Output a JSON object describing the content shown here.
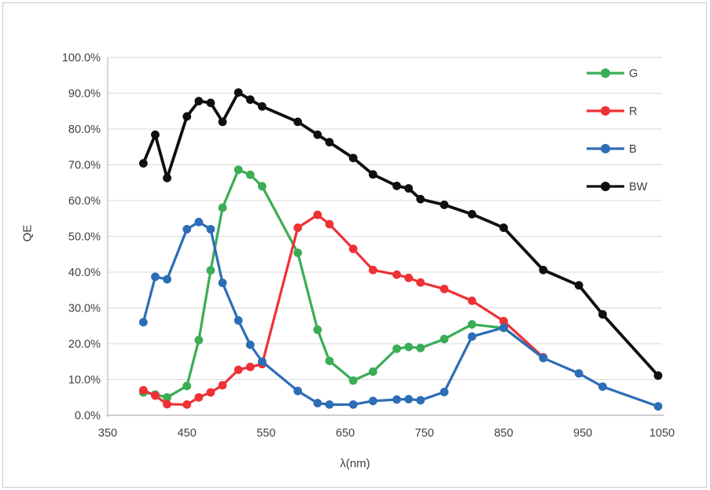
{
  "figure": {
    "background": "#ffffff",
    "border_color": "#c8c8c8"
  },
  "chart_data": {
    "type": "line",
    "title": "",
    "xlabel": "λ(nm)",
    "ylabel": "QE",
    "xlim": [
      350,
      1050
    ],
    "ylim": [
      0,
      100
    ],
    "grid": "horizontal-only",
    "legend_position": "top-right-inside",
    "x_ticks": [
      350,
      450,
      550,
      650,
      750,
      850,
      950,
      1050
    ],
    "y_ticks": [
      0,
      10,
      20,
      30,
      40,
      50,
      60,
      70,
      80,
      90,
      100
    ],
    "y_tick_format": "percent-one-decimal",
    "colors": {
      "gridline": "#d9d9d9",
      "axis_line": "#bfbfbf",
      "tick_label": "#3f3f3f"
    },
    "x": [
      395,
      410,
      425,
      450,
      465,
      480,
      495,
      515,
      530,
      545,
      590,
      615,
      630,
      660,
      685,
      715,
      730,
      745,
      775,
      810,
      850,
      900,
      945,
      975,
      1045
    ],
    "series": [
      {
        "name": "G",
        "color": "#3aad55",
        "values": [
          6.4,
          5.8,
          5.0,
          8.2,
          21.0,
          40.5,
          58.0,
          68.6,
          67.2,
          64.0,
          45.4,
          23.9,
          15.2,
          9.7,
          12.2,
          18.6,
          19.1,
          18.8,
          21.3,
          25.4,
          24.4,
          16.0,
          null,
          null,
          null
        ]
      },
      {
        "name": "R",
        "color": "#ee3135",
        "values": [
          7.0,
          5.5,
          3.1,
          3.0,
          5.0,
          6.4,
          8.4,
          12.7,
          13.5,
          14.3,
          52.4,
          56.0,
          53.4,
          46.5,
          40.6,
          39.3,
          38.4,
          37.1,
          35.3,
          32.0,
          26.3,
          16.2,
          null,
          null,
          null
        ]
      },
      {
        "name": "B",
        "color": "#2d6db6",
        "values": [
          26.0,
          38.7,
          38.0,
          52.0,
          54.0,
          52.0,
          37.0,
          26.5,
          19.7,
          15.0,
          6.8,
          3.4,
          3.0,
          3.0,
          4.0,
          4.4,
          4.5,
          4.2,
          6.5,
          22.0,
          24.5,
          16.0,
          11.7,
          8.0,
          2.5
        ]
      },
      {
        "name": "BW",
        "color": "#0f0f0f",
        "values": [
          70.4,
          78.4,
          66.3,
          83.5,
          87.8,
          87.3,
          82.0,
          90.2,
          88.2,
          86.3,
          82.0,
          78.4,
          76.3,
          71.9,
          67.3,
          64.1,
          63.4,
          60.4,
          58.8,
          56.2,
          52.4,
          40.6,
          36.3,
          28.2,
          11.1
        ]
      }
    ]
  }
}
